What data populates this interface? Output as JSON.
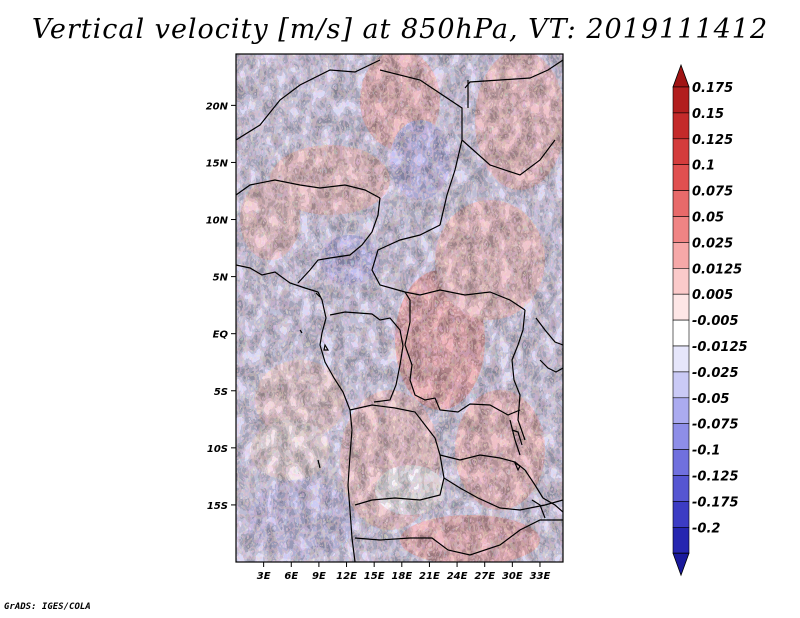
{
  "title": "Vertical velocity [m/s] at 850hPa, VT: 2019111412",
  "credit": "GrADS: IGES/COLA",
  "map": {
    "variable": "Vertical velocity",
    "units": "m/s",
    "level": "850hPa",
    "valid_time": "2019111412",
    "lon_range": [
      0,
      35.5
    ],
    "lat_range": [
      -20,
      24.5
    ],
    "lon_ticks": [
      {
        "value": 3,
        "label": "3E"
      },
      {
        "value": 6,
        "label": "6E"
      },
      {
        "value": 9,
        "label": "9E"
      },
      {
        "value": 12,
        "label": "12E"
      },
      {
        "value": 15,
        "label": "15E"
      },
      {
        "value": 18,
        "label": "18E"
      },
      {
        "value": 21,
        "label": "21E"
      },
      {
        "value": 24,
        "label": "24E"
      },
      {
        "value": 27,
        "label": "27E"
      },
      {
        "value": 30,
        "label": "30E"
      },
      {
        "value": 33,
        "label": "33E"
      }
    ],
    "lat_ticks": [
      {
        "value": 20,
        "label": "20N"
      },
      {
        "value": 15,
        "label": "15N"
      },
      {
        "value": 10,
        "label": "10N"
      },
      {
        "value": 5,
        "label": "5N"
      },
      {
        "value": 0,
        "label": "EQ"
      },
      {
        "value": -5,
        "label": "5S"
      },
      {
        "value": -10,
        "label": "10S"
      },
      {
        "value": -15,
        "label": "15S"
      }
    ]
  },
  "colorbar": {
    "levels": [
      {
        "label": "0.175",
        "color": "#b21e1e"
      },
      {
        "label": "0.15",
        "color": "#c42a2a"
      },
      {
        "label": "0.125",
        "color": "#d43c3c"
      },
      {
        "label": "0.1",
        "color": "#e05050"
      },
      {
        "label": "0.075",
        "color": "#e86a6a"
      },
      {
        "label": "0.05",
        "color": "#f08484"
      },
      {
        "label": "0.025",
        "color": "#f6a8a8"
      },
      {
        "label": "0.0125",
        "color": "#fbcaca"
      },
      {
        "label": "0.005",
        "color": "#fde6e6"
      },
      {
        "label": "-0.005",
        "color": "#ffffff"
      },
      {
        "label": "-0.0125",
        "color": "#e6e6fb"
      },
      {
        "label": "-0.025",
        "color": "#cacaf6"
      },
      {
        "label": "-0.05",
        "color": "#ababf0"
      },
      {
        "label": "-0.075",
        "color": "#8e8ee8"
      },
      {
        "label": "-0.1",
        "color": "#7070de"
      },
      {
        "label": "-0.125",
        "color": "#5656d2"
      },
      {
        "label": "-0.175",
        "color": "#3c3cc4"
      },
      {
        "label": "-0.2",
        "color": "#2626b0"
      }
    ],
    "top_cap_color": "#a01414",
    "bottom_cap_color": "#1a1a9c",
    "bottom_color": "#2020a8"
  }
}
